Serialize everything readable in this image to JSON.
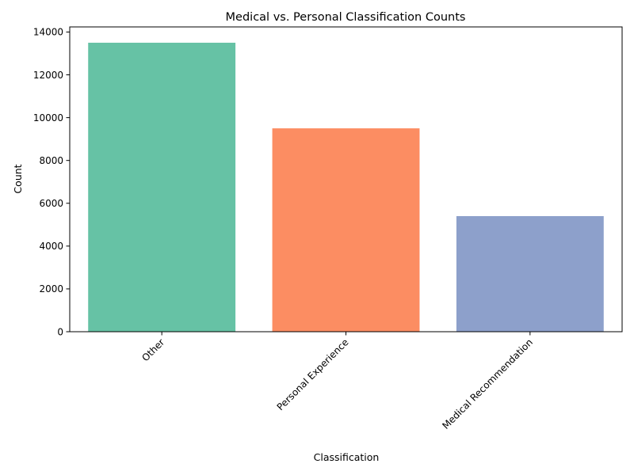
{
  "chart_data": {
    "type": "bar",
    "title": "Medical vs. Personal Classification Counts",
    "xlabel": "Classification",
    "ylabel": "Count",
    "categories": [
      "Other",
      "Personal Experience",
      "Medical Recommendation"
    ],
    "values": [
      13500,
      9500,
      5400
    ],
    "colors": [
      "#66c2a5",
      "#fc8d62",
      "#8da0cb"
    ],
    "ylim": [
      0,
      14238
    ],
    "yticks": [
      0,
      2000,
      4000,
      6000,
      8000,
      10000,
      12000,
      14000
    ],
    "grid": false,
    "legend": false
  }
}
